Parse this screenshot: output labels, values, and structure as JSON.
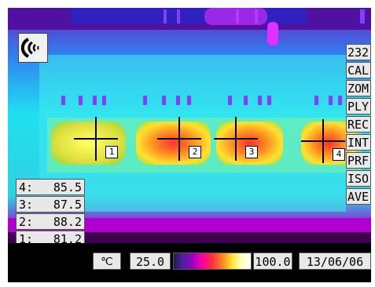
{
  "menu": {
    "items": [
      "232",
      "CAL",
      "ZOM",
      "PLY",
      "REC",
      "INT",
      "PRF",
      "ISO",
      "AVE"
    ]
  },
  "readings": [
    {
      "id": "4:",
      "value": "85.5"
    },
    {
      "id": "3:",
      "value": "87.5"
    },
    {
      "id": "2:",
      "value": "88.2"
    },
    {
      "id": "1:",
      "value": "81.2"
    }
  ],
  "markers": [
    "1",
    "2",
    "3",
    "4"
  ],
  "scale": {
    "unit_symbol": "℃",
    "min": "25.0",
    "max": "100.0"
  },
  "date": "13/06/06",
  "icons": {
    "sound": "sound-icon"
  }
}
